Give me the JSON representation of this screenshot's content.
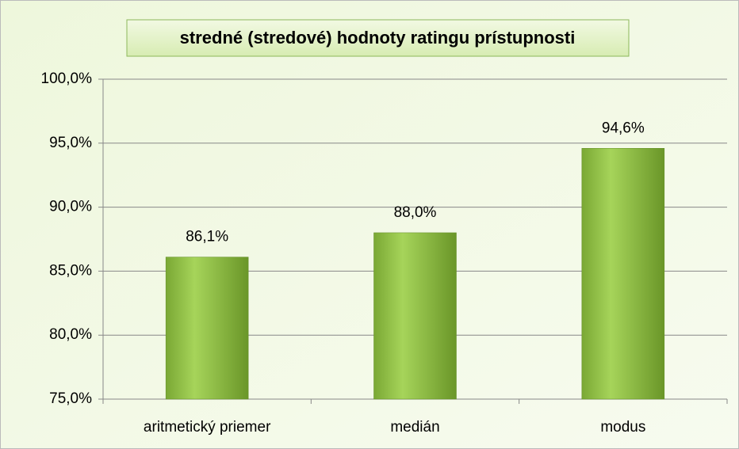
{
  "chart_data": {
    "type": "bar",
    "title": "stredné (stredové) hodnoty ratingu prístupnosti",
    "categories": [
      "aritmetický priemer",
      "medián",
      "modus"
    ],
    "values": [
      86.1,
      88.0,
      94.6
    ],
    "value_labels": [
      "86,1%",
      "88,0%",
      "94,6%"
    ],
    "color": "#8cbf3f",
    "ylim": [
      75,
      100
    ],
    "yticks": [
      {
        "value": 75,
        "label": "75,0%"
      },
      {
        "value": 80,
        "label": "80,0%"
      },
      {
        "value": 85,
        "label": "85,0%"
      },
      {
        "value": 90,
        "label": "90,0%"
      },
      {
        "value": 95,
        "label": "95,0%"
      },
      {
        "value": 100,
        "label": "100,0%"
      }
    ],
    "grid": true
  }
}
